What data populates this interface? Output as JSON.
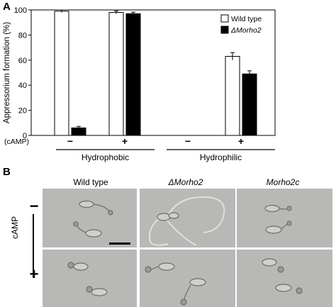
{
  "panel_a": {
    "letter": "A",
    "chart_data": {
      "type": "bar",
      "ylabel": "Appressorium formation (%)",
      "ylim": [
        0,
        100
      ],
      "yticks": [
        0,
        20,
        40,
        60,
        80,
        100
      ],
      "categories": [
        "Hydrophobic -",
        "Hydrophobic +",
        "Hydrophilic -",
        "Hydrophilic +"
      ],
      "series": [
        {
          "name": "Wild type",
          "color": "#ffffff",
          "values": [
            99,
            98,
            0,
            63
          ],
          "errors": [
            1,
            1.2,
            0,
            3
          ]
        },
        {
          "name": "ΔMorho2",
          "color": "#000000",
          "values": [
            6,
            97,
            0,
            49
          ],
          "errors": [
            1.2,
            1.2,
            0,
            2.5
          ]
        }
      ],
      "camp_label": "(cAMP)",
      "camp_signs": [
        "−",
        "+",
        "−",
        "+"
      ],
      "groups": [
        "Hydrophobic",
        "Hydrophilic"
      ],
      "legend_position": "top-right"
    }
  },
  "panel_b": {
    "letter": "B",
    "columns": [
      "Wild type",
      "ΔMorho2",
      "Morho2c"
    ],
    "row_label": "cAMP",
    "row_signs": [
      "−",
      "+"
    ]
  }
}
